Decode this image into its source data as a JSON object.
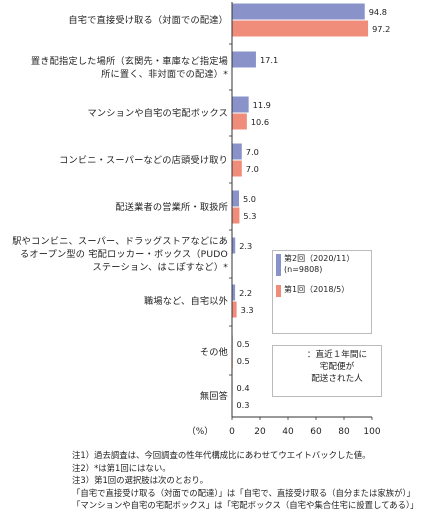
{
  "chart_data": {
    "type": "bar",
    "orientation": "horizontal",
    "categories": [
      "自宅で直接受け取る（対面での配達）",
      "置き配指定した場所（玄関先・車庫など指定場所に置く、非対面での配達）*",
      "マンションや自宅の宅配ボックス",
      "コンビニ・スーパーなどの店頭受け取り",
      "配送業者の営業所・取扱所",
      "駅やコンビニ、スーパー、ドラッグストアなどにあるオープン型の宅配ロッカー・ボックス（PUDOステーション、はこぽすなど）*",
      "職場など、自宅以外",
      "その他",
      "無回答"
    ],
    "category_lines": [
      [
        "自宅で直接受け取る（対面での配達）"
      ],
      [
        "置き配指定した場所（玄関先・車庫など指定場",
        "所に置く、非対面での配達）*"
      ],
      [
        "マンションや自宅の宅配ボックス"
      ],
      [
        "コンビニ・スーパーなどの店頭受け取り"
      ],
      [
        "配送業者の営業所・取扱所"
      ],
      [
        "駅やコンビニ、スーパー、ドラッグストアなどにあ",
        "るオープン型の 宅配ロッカー・ボックス（PUDO",
        "ステーション、はこぽすなど）*"
      ],
      [
        "職場など、自宅以外"
      ],
      [
        "その他"
      ],
      [
        "無回答"
      ]
    ],
    "series": [
      {
        "name": "第2回（2020/11）",
        "color": "#8a93c9",
        "values": [
          94.8,
          17.1,
          11.9,
          7.0,
          5.0,
          2.3,
          2.2,
          0.5,
          0.4
        ],
        "labels": [
          "94.8",
          "17.1",
          "11.9",
          "7.0",
          "5.0",
          "2.3",
          "2.2",
          "0.5",
          "0.4"
        ]
      },
      {
        "name": "第1回（2018/5）",
        "color": "#f08c7a",
        "values": [
          97.2,
          null,
          10.6,
          7.0,
          5.3,
          null,
          3.3,
          0.5,
          0.3
        ],
        "labels": [
          "97.2",
          "",
          "10.6",
          "7.0",
          "5.3",
          "",
          "3.3",
          "0.5",
          "0.3"
        ]
      }
    ],
    "legend_n": "(n=9808)",
    "xlim": [
      0,
      100
    ],
    "x_ticks": [
      "0",
      "20",
      "40",
      "60",
      "80",
      "100"
    ],
    "unit_label": "（%）",
    "legend_placement": "right-middle"
  },
  "annotation": {
    "lines": [
      "：直近１年間に",
      "宅配便が",
      "配送された人"
    ]
  },
  "notes": [
    "注1）過去調査は、今回調査の性年代構成比にあわせてウエイトバックした値。",
    "注2）*は第1回にはない。",
    "注3）第1回の選択肢は次のとおり。",
    "「自宅で直接受け取る（対面での配達）」は「自宅で、直接受け取る（自分または家族が）」",
    "「マンションや自宅の宅配ボックス」は「宅配ボックス（自宅や集合住宅に設置してある）」"
  ],
  "colors": {
    "series1": "#8a93c9",
    "series2": "#f08c7a",
    "axis": "#333333"
  }
}
